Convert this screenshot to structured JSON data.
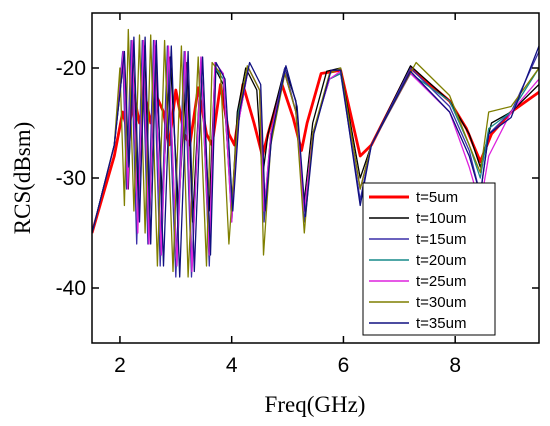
{
  "chart_data": {
    "type": "line",
    "title": "",
    "xlabel": "Freq(GHz)",
    "ylabel": "RCS(dBsm)",
    "xlim": [
      1.5,
      9.5
    ],
    "ylim": [
      -45,
      -15
    ],
    "xticks": [
      2,
      4,
      6,
      8
    ],
    "xtick_labels": [
      "2",
      "4",
      "6",
      "8"
    ],
    "yticks": [
      -20,
      -30,
      -40
    ],
    "ytick_labels": [
      "-20",
      "-30",
      "-40"
    ],
    "grid": false,
    "legend_position": "bottom-right",
    "series": [
      {
        "name": "t=5um",
        "color": "#ff0000",
        "x": [
          1.5,
          1.9,
          2.05,
          2.15,
          2.25,
          2.35,
          2.45,
          2.55,
          2.65,
          2.78,
          2.88,
          3.0,
          3.15,
          3.25,
          3.4,
          3.55,
          3.65,
          3.8,
          3.95,
          4.05,
          4.2,
          4.4,
          4.55,
          4.65,
          4.9,
          5.1,
          5.25,
          5.35,
          5.6,
          5.95,
          6.3,
          6.5,
          7.2,
          7.9,
          8.2,
          8.45,
          8.65,
          9.0,
          9.5
        ],
        "y": [
          -35,
          -28,
          -24,
          -26,
          -22.5,
          -25,
          -22.5,
          -25,
          -22.5,
          -24,
          -27,
          -22,
          -26,
          -27,
          -21.8,
          -26,
          -27,
          -21.5,
          -26,
          -27,
          -21.5,
          -25,
          -28,
          -26,
          -21.5,
          -24.5,
          -27.5,
          -25,
          -20.5,
          -20.2,
          -28,
          -27,
          -20,
          -23,
          -25.5,
          -28.5,
          -26,
          -24,
          -22.2
        ]
      },
      {
        "name": "t=10um",
        "color": "#000000",
        "x": [
          1.5,
          1.9,
          2.07,
          2.15,
          2.23,
          2.33,
          2.43,
          2.53,
          2.63,
          2.76,
          2.9,
          3.05,
          3.2,
          3.3,
          3.45,
          3.6,
          3.7,
          3.85,
          4.0,
          4.1,
          4.25,
          4.45,
          4.55,
          4.65,
          4.95,
          5.15,
          5.28,
          5.45,
          5.7,
          5.95,
          6.3,
          6.5,
          7.2,
          7.9,
          8.25,
          8.45,
          8.65,
          9.0,
          9.5
        ],
        "y": [
          -35,
          -27,
          -19,
          -31,
          -18.5,
          -33,
          -18,
          -34,
          -18,
          -32,
          -19,
          -33,
          -19.5,
          -34,
          -19.5,
          -33,
          -20,
          -21.5,
          -33,
          -24,
          -20,
          -22,
          -30,
          -26,
          -20,
          -23,
          -33,
          -25,
          -20.3,
          -20,
          -30,
          -27,
          -19.8,
          -23,
          -26,
          -29,
          -25,
          -24,
          -21.5
        ]
      },
      {
        "name": "t=15um",
        "color": "#3a2fa8",
        "x": [
          1.5,
          1.9,
          2.05,
          2.12,
          2.2,
          2.3,
          2.4,
          2.5,
          2.6,
          2.72,
          2.85,
          3.0,
          3.15,
          3.28,
          3.45,
          3.6,
          3.7,
          3.85,
          4.0,
          4.12,
          4.3,
          4.5,
          4.58,
          4.7,
          4.95,
          5.15,
          5.3,
          5.45,
          5.75,
          5.95,
          6.3,
          6.5,
          7.2,
          7.9,
          8.25,
          8.45,
          8.6,
          9.0,
          9.5
        ],
        "y": [
          -35,
          -27,
          -18.5,
          -31,
          -17.5,
          -36,
          -17.5,
          -36,
          -17.5,
          -38,
          -18,
          -39,
          -18.5,
          -39,
          -19,
          -38,
          -20,
          -20.5,
          -34,
          -25,
          -20,
          -22,
          -34,
          -26,
          -20,
          -24,
          -34,
          -26,
          -21,
          -20.5,
          -32,
          -27,
          -20,
          -23.5,
          -27.5,
          -31.5,
          -26,
          -24,
          -18.5
        ]
      },
      {
        "name": "t=20um",
        "color": "#178a8a",
        "x": [
          1.5,
          1.9,
          2.06,
          2.14,
          2.22,
          2.32,
          2.42,
          2.52,
          2.62,
          2.74,
          2.87,
          3.02,
          3.17,
          3.29,
          3.45,
          3.6,
          3.7,
          3.85,
          4.0,
          4.12,
          4.3,
          4.5,
          4.58,
          4.7,
          4.95,
          5.15,
          5.3,
          5.45,
          5.75,
          5.95,
          6.3,
          6.5,
          7.2,
          7.9,
          8.25,
          8.45,
          8.6,
          9.0,
          9.5
        ],
        "y": [
          -35,
          -27,
          -18.5,
          -30,
          -18,
          -34,
          -18,
          -35,
          -18,
          -37,
          -18.5,
          -38,
          -19,
          -38,
          -19.5,
          -37,
          -20,
          -21,
          -33,
          -24,
          -20,
          -22,
          -33,
          -26,
          -20.5,
          -24,
          -33,
          -26,
          -21,
          -20.5,
          -31,
          -27,
          -20.5,
          -23,
          -27,
          -30,
          -25.5,
          -24,
          -20
        ]
      },
      {
        "name": "t=25um",
        "color": "#dd22dd",
        "x": [
          1.5,
          1.9,
          2.06,
          2.14,
          2.22,
          2.32,
          2.42,
          2.52,
          2.62,
          2.74,
          2.87,
          3.02,
          3.17,
          3.29,
          3.45,
          3.6,
          3.7,
          3.85,
          4.0,
          4.12,
          4.3,
          4.5,
          4.58,
          4.7,
          4.95,
          5.15,
          5.3,
          5.45,
          5.75,
          5.95,
          6.3,
          6.5,
          7.2,
          7.9,
          8.25,
          8.45,
          8.6,
          9.0,
          9.5
        ],
        "y": [
          -35,
          -27,
          -18.5,
          -31,
          -17.5,
          -35,
          -17.5,
          -36,
          -17.5,
          -37,
          -18,
          -38,
          -18.5,
          -38.5,
          -19,
          -37,
          -19.5,
          -20.5,
          -34,
          -25,
          -20,
          -22,
          -33,
          -26,
          -20.5,
          -24,
          -33,
          -26,
          -21,
          -20.3,
          -31,
          -27,
          -20.5,
          -24,
          -29,
          -32.5,
          -28,
          -24,
          -21
        ]
      },
      {
        "name": "t=30um",
        "color": "#7f7f00",
        "x": [
          1.5,
          1.9,
          2.0,
          2.08,
          2.15,
          2.25,
          2.35,
          2.45,
          2.55,
          2.67,
          2.8,
          2.95,
          3.1,
          3.22,
          3.4,
          3.55,
          3.65,
          3.8,
          3.95,
          4.1,
          4.28,
          4.5,
          4.57,
          4.7,
          4.95,
          5.15,
          5.3,
          5.45,
          5.75,
          5.95,
          6.3,
          6.5,
          7.3,
          7.9,
          8.25,
          8.45,
          8.6,
          9.0,
          9.5
        ],
        "y": [
          -35,
          -27,
          -20,
          -32.5,
          -16.5,
          -33,
          -17,
          -35,
          -17,
          -38,
          -17.5,
          -38.5,
          -18,
          -39,
          -19,
          -38,
          -19.5,
          -20.5,
          -36,
          -25,
          -19.8,
          -22,
          -37,
          -27,
          -20.5,
          -24,
          -35,
          -26,
          -20.5,
          -20,
          -31,
          -27,
          -19.5,
          -22.5,
          -27,
          -29.5,
          -24,
          -23.5,
          -20
        ]
      },
      {
        "name": "t=35um",
        "color": "#101080",
        "x": [
          1.5,
          1.9,
          2.08,
          2.16,
          2.25,
          2.35,
          2.45,
          2.55,
          2.65,
          2.78,
          2.92,
          3.07,
          3.22,
          3.33,
          3.48,
          3.62,
          3.72,
          3.88,
          4.02,
          4.14,
          4.32,
          4.52,
          4.6,
          4.72,
          4.97,
          5.17,
          5.32,
          5.47,
          5.78,
          5.95,
          6.3,
          6.5,
          7.2,
          7.9,
          8.25,
          8.45,
          8.6,
          9.0,
          9.5
        ],
        "y": [
          -35,
          -27,
          -18.5,
          -29,
          -17.2,
          -34,
          -17.2,
          -36,
          -17.5,
          -38,
          -18,
          -39,
          -18.5,
          -38.5,
          -19,
          -37,
          -19.5,
          -21,
          -33,
          -24,
          -19.5,
          -21.5,
          -33,
          -26,
          -19.8,
          -23.5,
          -33.5,
          -26,
          -20.2,
          -20.2,
          -32.5,
          -27,
          -20.3,
          -24,
          -28,
          -31.5,
          -26,
          -24.5,
          -18
        ]
      }
    ]
  }
}
